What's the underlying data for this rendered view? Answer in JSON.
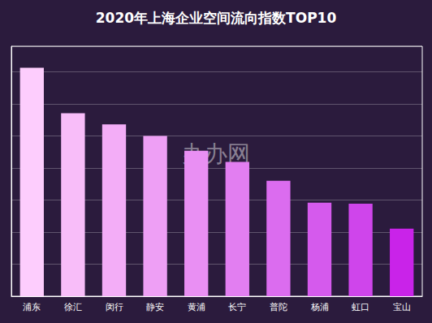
{
  "chart_data": {
    "type": "bar",
    "title": "2020年上海企业空间流向指数TOP10",
    "categories": [
      "浦东",
      "徐汇",
      "闵行",
      "静安",
      "黄浦",
      "长宁",
      "普陀",
      "杨浦",
      "虹口",
      "宝山"
    ],
    "values": [
      7.13,
      5.71,
      5.36,
      5.0,
      4.54,
      4.19,
      3.6,
      2.92,
      2.89,
      2.11
    ],
    "colors": [
      "#fdcdfd",
      "#f8bdf9",
      "#f3adf7",
      "#ee9ff5",
      "#e98ff3",
      "#e27ef1",
      "#db6cef",
      "#d55aed",
      "#cf45eb",
      "#c923e9"
    ],
    "ylim": [
      0,
      7.8
    ],
    "yticks": [
      0,
      1,
      2,
      3,
      4,
      5,
      6,
      7
    ],
    "grid": true,
    "tick_labels": "x",
    "annotation": "办办网"
  }
}
